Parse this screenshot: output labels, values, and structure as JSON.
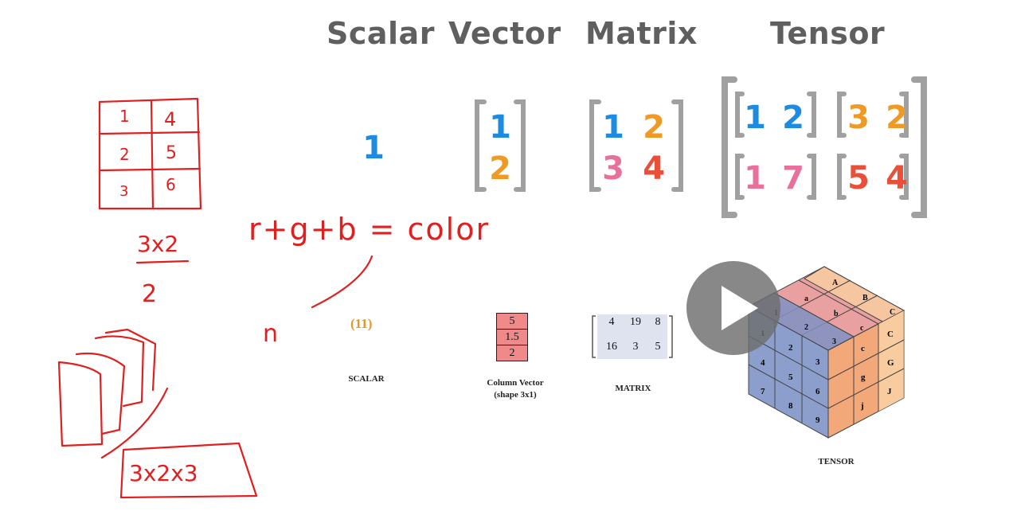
{
  "headings": {
    "scalar": "Scalar",
    "vector": "Vector",
    "matrix": "Matrix",
    "tensor": "Tensor"
  },
  "colors": {
    "heading": "#5f5f5f",
    "blue": "#1f8be0",
    "orange": "#ef9a25",
    "pink": "#e8709a",
    "red": "#e8503a",
    "ink": "#e02020",
    "bracket": "#9a9a9a"
  },
  "top_examples": {
    "scalar": "1",
    "vector": [
      "1",
      "2"
    ],
    "matrix": [
      "1",
      "2",
      "3",
      "4"
    ],
    "tensor": {
      "top_left": [
        "1",
        "2"
      ],
      "top_right": [
        "3",
        "2"
      ],
      "bottom_left": [
        "1",
        "7"
      ],
      "bottom_right": [
        "5",
        "4"
      ]
    }
  },
  "bottom_figure": {
    "scalar_value": "(11)",
    "scalar_caption": "SCALAR",
    "column_vector_values": [
      "5",
      "1.5",
      "2"
    ],
    "column_vector_caption": "Column Vector",
    "column_vector_subcaption": "(shape 3x1)",
    "matrix_values": [
      "4",
      "19",
      "8",
      "16",
      "3",
      "5"
    ],
    "matrix_caption": "MATRIX",
    "tensor_caption": "TENSOR",
    "tensor_cube": {
      "front": [
        "1",
        "2",
        "3",
        "4",
        "5",
        "6",
        "7",
        "8",
        "9"
      ],
      "side": [
        "C",
        "c",
        "G",
        "g",
        "J",
        "j"
      ],
      "top": [
        "A",
        "B",
        "C",
        "a",
        "b",
        "c",
        "1",
        "2",
        "3"
      ]
    }
  },
  "handwriting": {
    "grid_cells": [
      "1",
      "4",
      "2",
      "5",
      "3",
      "6"
    ],
    "grid_shape": "3x2",
    "number": "2",
    "formula": "r+g+b = color",
    "letter": "n",
    "stack_shape": "3x2x3"
  },
  "video_overlay": {
    "play_icon": "play-icon"
  }
}
